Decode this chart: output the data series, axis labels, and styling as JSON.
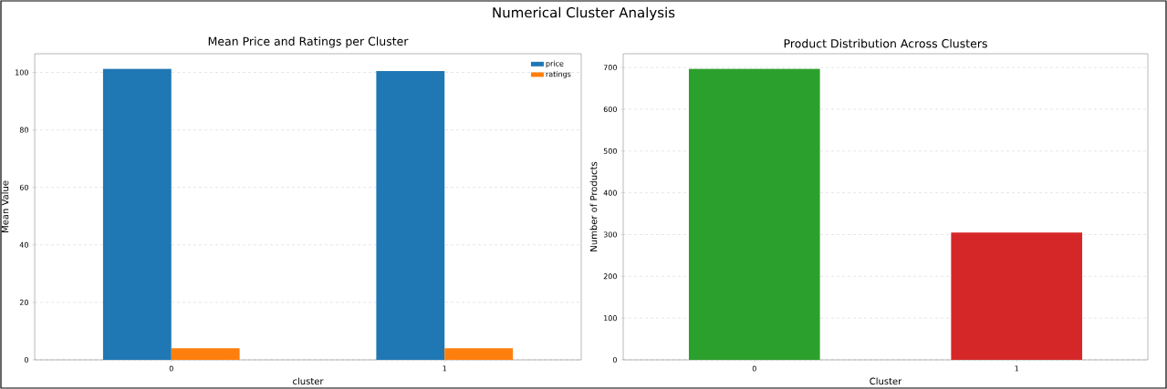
{
  "chart_data": [
    {
      "type": "bar",
      "title": "Mean Price and Ratings per Cluster",
      "xlabel": "cluster",
      "ylabel": "Mean Value",
      "annotations": [
        "Numerical Cluster Analysis"
      ],
      "categories": [
        "0",
        "1"
      ],
      "series": [
        {
          "name": "price",
          "color": "#1f77b4",
          "values": [
            101.3,
            100.5
          ]
        },
        {
          "name": "ratings",
          "color": "#ff7f0e",
          "values": [
            4.0,
            4.0
          ]
        }
      ],
      "ylim": [
        0,
        106.5
      ],
      "yticks": [
        0,
        20,
        40,
        60,
        80,
        100
      ],
      "grid": "y",
      "legend": "top right"
    },
    {
      "type": "bar",
      "title": "Product Distribution Across Clusters",
      "xlabel": "Cluster",
      "ylabel": "Number of Products",
      "categories": [
        "0",
        "1"
      ],
      "values": [
        697,
        305
      ],
      "colors": [
        "#2ca02c",
        "#d62728"
      ],
      "ylim": [
        0,
        733
      ],
      "yticks": [
        0,
        100,
        200,
        300,
        400,
        500,
        600,
        700
      ],
      "grid": "y"
    }
  ]
}
